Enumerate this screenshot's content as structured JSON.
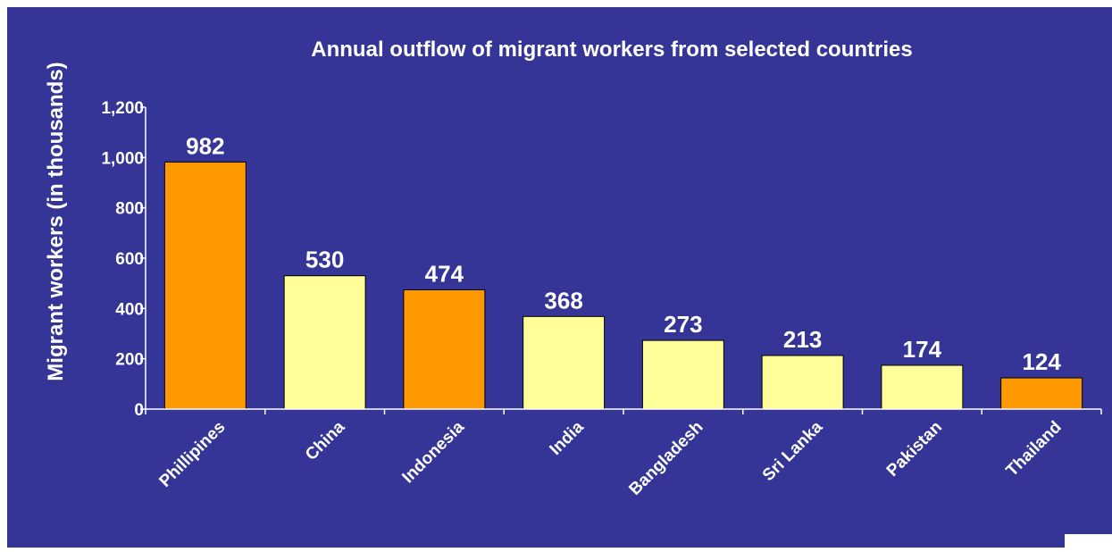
{
  "chart_data": {
    "type": "bar",
    "title": "Annual outflow of migrant workers from selected countries",
    "ylabel": "Migrant workers (in thousands)",
    "xlabel": "",
    "categories": [
      "Phillipines",
      "China",
      "Indonesia",
      "India",
      "Bangladesh",
      "Sri Lanka",
      "Pakistan",
      "Thailand"
    ],
    "values": [
      982,
      530,
      474,
      368,
      273,
      213,
      174,
      124
    ],
    "data_labels": [
      "982",
      "530",
      "474",
      "368",
      "273",
      "213",
      "174",
      "124"
    ],
    "highlight": [
      true,
      false,
      true,
      false,
      false,
      false,
      false,
      true
    ],
    "ylim": [
      0,
      1200
    ],
    "yticks": [
      0,
      200,
      400,
      600,
      800,
      1000,
      1200
    ],
    "ytick_labels": [
      "0",
      "200",
      "400",
      "600",
      "800",
      "1,000",
      "1,200"
    ],
    "grid": false,
    "legend": "none"
  },
  "colors": {
    "background": "#353598",
    "highlight_bar": "#ff9900",
    "default_bar": "#ffff99",
    "text": "#ffffff",
    "axis": "#ffffff"
  }
}
